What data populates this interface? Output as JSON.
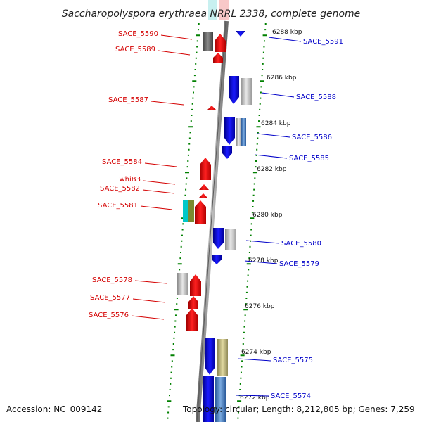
{
  "header": {
    "title": "Saccharopolyspora erythraea NRRL 2338, complete genome"
  },
  "footer": {
    "accession": "Accession: NC_009142",
    "topology": "Topology: circular; Length: 8,212,805 bp; Genes: 7,259"
  },
  "kbp_ticks": [
    {
      "label": "6288 kbp",
      "value": 6288
    },
    {
      "label": "6286 kbp",
      "value": 6286
    },
    {
      "label": "6284 kbp",
      "value": 6284
    },
    {
      "label": "6282 kbp",
      "value": 6282
    },
    {
      "label": "6280 kbp",
      "value": 6280
    },
    {
      "label": "6278 kbp",
      "value": 6278
    },
    {
      "label": "6276 kbp",
      "value": 6276
    },
    {
      "label": "6274 kbp",
      "value": 6274
    },
    {
      "label": "6272 kbp",
      "value": 6272
    }
  ],
  "genes_left": [
    "SACE_5590",
    "SACE_5589",
    "SACE_5587",
    "SACE_5584",
    "whiB3",
    "SACE_5582",
    "SACE_5581",
    "SACE_5578",
    "SACE_5577",
    "SACE_5576"
  ],
  "genes_right": [
    "SACE_5591",
    "SACE_5588",
    "SACE_5586",
    "SACE_5585",
    "SACE_5580",
    "SACE_5579",
    "SACE_5575",
    "SACE_5574"
  ],
  "colors": {
    "reverse_strand": "#ff0000",
    "forward_strand": "#0000ff",
    "grey_feature": "#c8c8c8",
    "dark_feature": "#606060",
    "cyan_feature": "#00cccc",
    "olive_feature": "#8a8a3a",
    "khaki_feature": "#c8c08a",
    "steel_feature": "#5a8ac8",
    "tick_green": "#008000"
  }
}
